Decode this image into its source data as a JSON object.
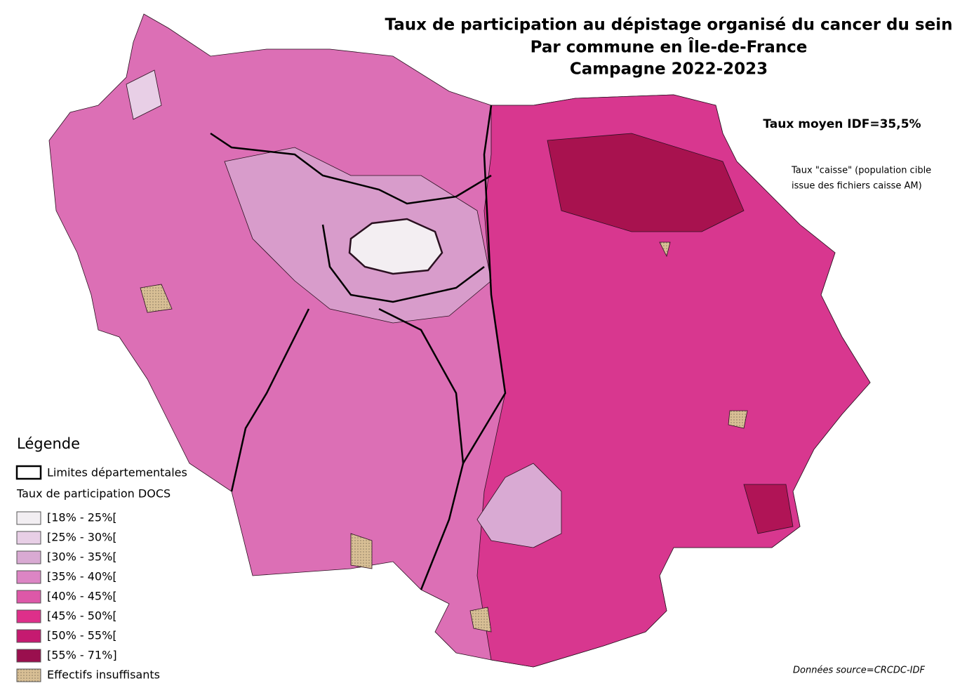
{
  "title": [
    "Taux de participation au dépistage organisé du cancer du sein",
    "Par commune en Île-de-France",
    "Campagne 2022-2023"
  ],
  "mean_rate": "Taux moyen IDF=35,5%",
  "note": [
    "Taux \"caisse\" (population cible",
    "issue des fichiers caisse AM)"
  ],
  "legend": {
    "title": "Légende",
    "boundary": "Limites départementales",
    "subtitle": "Taux de participation DOCS",
    "classes": [
      {
        "label": "[18% - 25%[",
        "color": "#f2eef2"
      },
      {
        "label": "[25% - 30%[",
        "color": "#e8cfe6"
      },
      {
        "label": "[30% - 35%[",
        "color": "#d9aad3"
      },
      {
        "label": "[35% - 40%[",
        "color": "#dc85c4"
      },
      {
        "label": "[40% - 45%[",
        "color": "#dd58a8"
      },
      {
        "label": "[45% - 50%[",
        "color": "#de2f8a"
      },
      {
        "label": "[50% - 55%[",
        "color": "#c51a70"
      },
      {
        "label": "[55% - 71%]",
        "color": "#9a0f4e"
      }
    ],
    "insufficient": "Effectifs insuffisants"
  },
  "source": "Données source=CRCDC-IDF"
}
